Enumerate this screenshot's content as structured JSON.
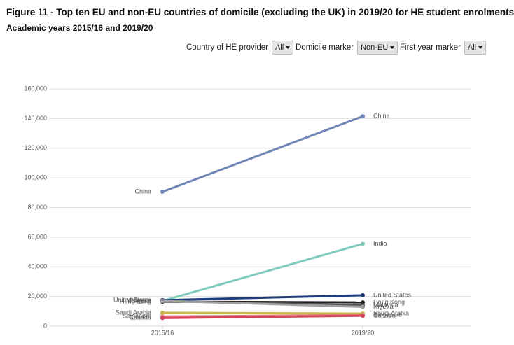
{
  "controls": [
    {
      "label": "Country of HE provider",
      "value": "All"
    },
    {
      "label": "Domicile marker",
      "value": "Non-EU"
    },
    {
      "label": "First year marker",
      "value": "All"
    }
  ],
  "chart_data": {
    "type": "line",
    "title": "Figure 11 - Top ten EU and non-EU countries of domicile (excluding the UK) in 2019/20 for HE student enrolments",
    "subtitle": "Academic years 2015/16 and 2019/20",
    "categories": [
      "2015/16",
      "2019/20"
    ],
    "series": [
      {
        "name": "China",
        "color": "#6f86b6",
        "values": [
          90600,
          141500
        ]
      },
      {
        "name": "India",
        "color": "#80cbbd",
        "values": [
          17000,
          55500
        ]
      },
      {
        "name": "United States",
        "color": "#1f3d7c",
        "values": [
          17500,
          20800
        ]
      },
      {
        "name": "Hong Kong",
        "color": "#222222",
        "values": [
          16500,
          16000
        ]
      },
      {
        "name": "Malaysia",
        "color": "#555555",
        "values": [
          17000,
          14000
        ]
      },
      {
        "name": "Nigeria",
        "color": "#a0a0a0",
        "values": [
          17000,
          13000
        ]
      },
      {
        "name": "Saudi Arabia",
        "color": "#c9b84c",
        "values": [
          9000,
          8500
        ]
      },
      {
        "name": "Singapore",
        "color": "#e27f8e",
        "values": [
          6500,
          7500
        ]
      },
      {
        "name": "Canada",
        "color": "#d8435c",
        "values": [
          5500,
          7000
        ]
      }
    ],
    "ylim": [
      0,
      160000
    ],
    "yticks": [
      0,
      {
        "value": 20000,
        "label": "20,000"
      },
      {
        "value": 40000,
        "label": "40,000"
      },
      {
        "value": 60000,
        "label": "60,000"
      },
      {
        "value": 80000,
        "label": "80,000"
      },
      {
        "value": 100000,
        "label": "100,000"
      },
      {
        "value": 120000,
        "label": "120,000"
      },
      {
        "value": 140000,
        "label": "140,000"
      },
      {
        "value": 160000,
        "label": "160,000"
      }
    ],
    "grid": true
  }
}
